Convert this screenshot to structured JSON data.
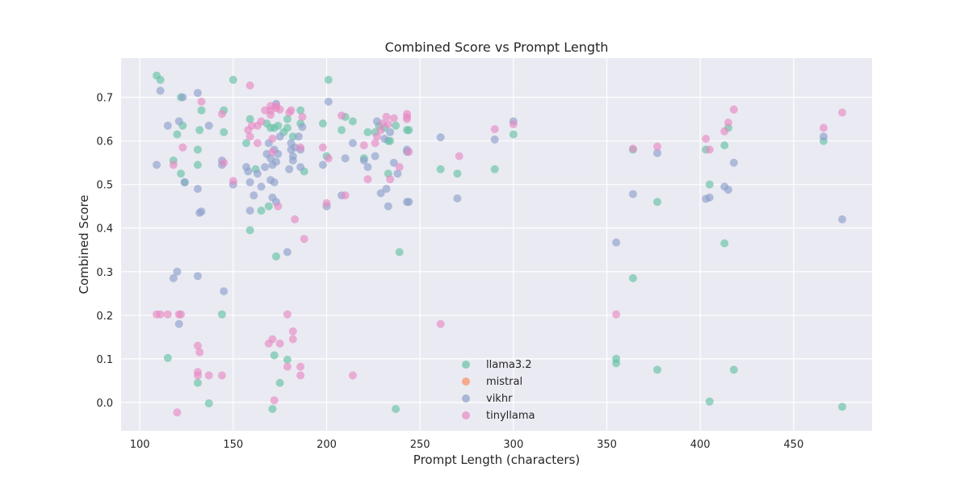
{
  "chart_data": {
    "type": "scatter",
    "title": "Combined Score vs Prompt Length",
    "xlabel": "Prompt Length (characters)",
    "ylabel": "Combined Score",
    "xlim": [
      90,
      492
    ],
    "ylim": [
      -0.065,
      0.79
    ],
    "xticks": [
      100,
      150,
      200,
      250,
      300,
      350,
      400,
      450
    ],
    "yticks": [
      0.0,
      0.1,
      0.2,
      0.3,
      0.4,
      0.5,
      0.6,
      0.7
    ],
    "grid": true,
    "legend_position": "lower-center",
    "series": [
      {
        "name": "llama3.2",
        "color": "#66c2a5",
        "points": [
          [
            109,
            0.75
          ],
          [
            111,
            0.74
          ],
          [
            122,
            0.7
          ],
          [
            120,
            0.615
          ],
          [
            123,
            0.635
          ],
          [
            118,
            0.555
          ],
          [
            122,
            0.525
          ],
          [
            124,
            0.505
          ],
          [
            131,
            0.58
          ],
          [
            131,
            0.545
          ],
          [
            132,
            0.625
          ],
          [
            133,
            0.67
          ],
          [
            145,
            0.62
          ],
          [
            145,
            0.67
          ],
          [
            150,
            0.74
          ],
          [
            157,
            0.595
          ],
          [
            159,
            0.65
          ],
          [
            159,
            0.395
          ],
          [
            162,
            0.535
          ],
          [
            165,
            0.44
          ],
          [
            168,
            0.64
          ],
          [
            169,
            0.45
          ],
          [
            170,
            0.63
          ],
          [
            172,
            0.63
          ],
          [
            172,
            0.108
          ],
          [
            171,
            -0.015
          ],
          [
            173,
            0.335
          ],
          [
            174,
            0.635
          ],
          [
            175,
            0.045
          ],
          [
            177,
            0.62
          ],
          [
            179,
            0.63
          ],
          [
            179,
            0.65
          ],
          [
            179,
            0.098
          ],
          [
            182,
            0.61
          ],
          [
            186,
            0.64
          ],
          [
            186,
            0.67
          ],
          [
            188,
            0.53
          ],
          [
            198,
            0.64
          ],
          [
            200,
            0.565
          ],
          [
            201,
            0.74
          ],
          [
            208,
            0.625
          ],
          [
            210,
            0.655
          ],
          [
            214,
            0.645
          ],
          [
            220,
            0.56
          ],
          [
            222,
            0.62
          ],
          [
            226,
            0.62
          ],
          [
            228,
            0.635
          ],
          [
            231,
            0.63
          ],
          [
            233,
            0.6
          ],
          [
            233,
            0.525
          ],
          [
            234,
            0.6
          ],
          [
            237,
            0.635
          ],
          [
            237,
            -0.015
          ],
          [
            239,
            0.345
          ],
          [
            243,
            0.625
          ],
          [
            244,
            0.625
          ],
          [
            261,
            0.535
          ],
          [
            270,
            0.525
          ],
          [
            290,
            0.535
          ],
          [
            300,
            0.615
          ],
          [
            115,
            0.102
          ],
          [
            131,
            0.045
          ],
          [
            137,
            -0.002
          ],
          [
            144,
            0.202
          ],
          [
            355,
            0.1
          ],
          [
            355,
            0.09
          ],
          [
            364,
            0.285
          ],
          [
            364,
            0.58
          ],
          [
            377,
            0.46
          ],
          [
            377,
            0.075
          ],
          [
            403,
            0.58
          ],
          [
            405,
            0.5
          ],
          [
            405,
            0.002
          ],
          [
            413,
            0.59
          ],
          [
            413,
            0.365
          ],
          [
            415,
            0.63
          ],
          [
            418,
            0.075
          ],
          [
            466,
            0.6
          ],
          [
            476,
            -0.01
          ]
        ]
      },
      {
        "name": "mistral",
        "color": "#fc8d62",
        "points": []
      },
      {
        "name": "vikhr",
        "color": "#8da0cb",
        "points": [
          [
            109,
            0.545
          ],
          [
            111,
            0.715
          ],
          [
            115,
            0.635
          ],
          [
            118,
            0.285
          ],
          [
            120,
            0.3
          ],
          [
            121,
            0.645
          ],
          [
            121,
            0.18
          ],
          [
            123,
            0.7
          ],
          [
            124,
            0.505
          ],
          [
            131,
            0.71
          ],
          [
            131,
            0.49
          ],
          [
            131,
            0.29
          ],
          [
            132,
            0.435
          ],
          [
            133,
            0.438
          ],
          [
            137,
            0.635
          ],
          [
            144,
            0.555
          ],
          [
            144,
            0.545
          ],
          [
            145,
            0.255
          ],
          [
            150,
            0.5
          ],
          [
            157,
            0.54
          ],
          [
            158,
            0.53
          ],
          [
            159,
            0.505
          ],
          [
            159,
            0.44
          ],
          [
            161,
            0.475
          ],
          [
            163,
            0.525
          ],
          [
            165,
            0.495
          ],
          [
            167,
            0.54
          ],
          [
            168,
            0.57
          ],
          [
            169,
            0.595
          ],
          [
            170,
            0.56
          ],
          [
            170,
            0.51
          ],
          [
            171,
            0.545
          ],
          [
            171,
            0.47
          ],
          [
            172,
            0.58
          ],
          [
            172,
            0.505
          ],
          [
            173,
            0.552
          ],
          [
            173,
            0.685
          ],
          [
            173,
            0.46
          ],
          [
            174,
            0.57
          ],
          [
            175,
            0.61
          ],
          [
            179,
            0.345
          ],
          [
            180,
            0.535
          ],
          [
            181,
            0.595
          ],
          [
            181,
            0.58
          ],
          [
            182,
            0.565
          ],
          [
            182,
            0.555
          ],
          [
            183,
            0.585
          ],
          [
            185,
            0.61
          ],
          [
            186,
            0.54
          ],
          [
            186,
            0.58
          ],
          [
            187,
            0.632
          ],
          [
            198,
            0.545
          ],
          [
            200,
            0.45
          ],
          [
            201,
            0.69
          ],
          [
            208,
            0.475
          ],
          [
            210,
            0.56
          ],
          [
            214,
            0.595
          ],
          [
            220,
            0.555
          ],
          [
            222,
            0.54
          ],
          [
            226,
            0.565
          ],
          [
            227,
            0.645
          ],
          [
            229,
            0.48
          ],
          [
            231,
            0.605
          ],
          [
            232,
            0.49
          ],
          [
            233,
            0.45
          ],
          [
            234,
            0.62
          ],
          [
            236,
            0.55
          ],
          [
            238,
            0.525
          ],
          [
            243,
            0.58
          ],
          [
            243,
            0.575
          ],
          [
            243,
            0.46
          ],
          [
            244,
            0.46
          ],
          [
            261,
            0.608
          ],
          [
            270,
            0.468
          ],
          [
            290,
            0.603
          ],
          [
            300,
            0.645
          ],
          [
            355,
            0.367
          ],
          [
            364,
            0.478
          ],
          [
            377,
            0.572
          ],
          [
            403,
            0.467
          ],
          [
            405,
            0.47
          ],
          [
            413,
            0.495
          ],
          [
            415,
            0.488
          ],
          [
            418,
            0.55
          ],
          [
            466,
            0.61
          ],
          [
            476,
            0.42
          ]
        ]
      },
      {
        "name": "tinyllama",
        "color": "#e78ac3",
        "points": [
          [
            109,
            0.202
          ],
          [
            111,
            0.202
          ],
          [
            115,
            0.202
          ],
          [
            118,
            0.545
          ],
          [
            120,
            -0.023
          ],
          [
            121,
            0.202
          ],
          [
            122,
            0.202
          ],
          [
            123,
            0.585
          ],
          [
            131,
            0.13
          ],
          [
            131,
            0.07
          ],
          [
            131,
            0.062
          ],
          [
            132,
            0.115
          ],
          [
            133,
            0.69
          ],
          [
            137,
            0.062
          ],
          [
            144,
            0.662
          ],
          [
            144,
            0.062
          ],
          [
            145,
            0.55
          ],
          [
            150,
            0.508
          ],
          [
            158,
            0.625
          ],
          [
            159,
            0.727
          ],
          [
            159,
            0.61
          ],
          [
            160,
            0.635
          ],
          [
            163,
            0.635
          ],
          [
            163,
            0.595
          ],
          [
            165,
            0.645
          ],
          [
            167,
            0.67
          ],
          [
            169,
            0.135
          ],
          [
            170,
            0.68
          ],
          [
            170,
            0.67
          ],
          [
            170,
            0.66
          ],
          [
            171,
            0.575
          ],
          [
            171,
            0.605
          ],
          [
            171,
            0.145
          ],
          [
            172,
            0.005
          ],
          [
            173,
            0.68
          ],
          [
            173,
            0.675
          ],
          [
            174,
            0.45
          ],
          [
            175,
            0.672
          ],
          [
            175,
            0.135
          ],
          [
            179,
            0.202
          ],
          [
            179,
            0.082
          ],
          [
            180,
            0.665
          ],
          [
            181,
            0.67
          ],
          [
            182,
            0.163
          ],
          [
            182,
            0.145
          ],
          [
            183,
            0.42
          ],
          [
            186,
            0.585
          ],
          [
            186,
            0.082
          ],
          [
            186,
            0.062
          ],
          [
            187,
            0.655
          ],
          [
            188,
            0.375
          ],
          [
            198,
            0.585
          ],
          [
            200,
            0.457
          ],
          [
            201,
            0.56
          ],
          [
            208,
            0.658
          ],
          [
            210,
            0.475
          ],
          [
            214,
            0.062
          ],
          [
            220,
            0.59
          ],
          [
            222,
            0.512
          ],
          [
            226,
            0.595
          ],
          [
            227,
            0.61
          ],
          [
            229,
            0.625
          ],
          [
            230,
            0.64
          ],
          [
            232,
            0.655
          ],
          [
            233,
            0.638
          ],
          [
            234,
            0.512
          ],
          [
            236,
            0.652
          ],
          [
            239,
            0.54
          ],
          [
            243,
            0.662
          ],
          [
            243,
            0.655
          ],
          [
            243,
            0.65
          ],
          [
            244,
            0.575
          ],
          [
            261,
            0.18
          ],
          [
            271,
            0.565
          ],
          [
            290,
            0.627
          ],
          [
            300,
            0.638
          ],
          [
            355,
            0.202
          ],
          [
            364,
            0.582
          ],
          [
            377,
            0.587
          ],
          [
            403,
            0.605
          ],
          [
            405,
            0.58
          ],
          [
            413,
            0.622
          ],
          [
            415,
            0.642
          ],
          [
            418,
            0.672
          ],
          [
            466,
            0.63
          ],
          [
            476,
            0.665
          ]
        ]
      }
    ]
  }
}
